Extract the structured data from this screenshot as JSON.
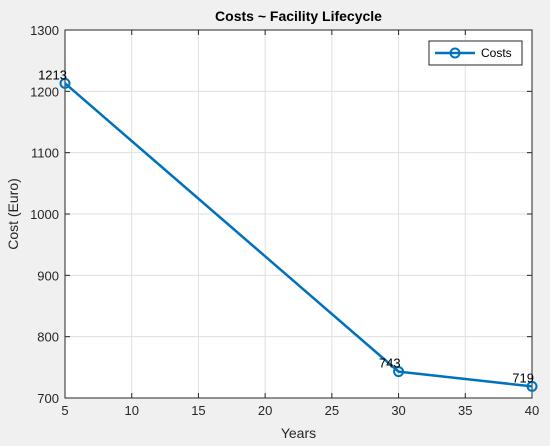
{
  "chart_data": {
    "type": "line",
    "title": "Costs ~ Facility Lifecycle",
    "xlabel": "Years",
    "ylabel": "Cost (Euro)",
    "xlim": [
      5,
      40
    ],
    "ylim": [
      700,
      1300
    ],
    "xticks": [
      5,
      10,
      15,
      20,
      25,
      30,
      35,
      40
    ],
    "yticks": [
      700,
      800,
      900,
      1000,
      1100,
      1200,
      1300
    ],
    "grid": true,
    "legend_position": "top-right",
    "series": [
      {
        "name": "Costs",
        "color": "#0072bd",
        "marker": "circle",
        "x": [
          5,
          30,
          40
        ],
        "y": [
          1213,
          743,
          719
        ],
        "labels": [
          "1213",
          "743",
          "719"
        ]
      }
    ]
  }
}
